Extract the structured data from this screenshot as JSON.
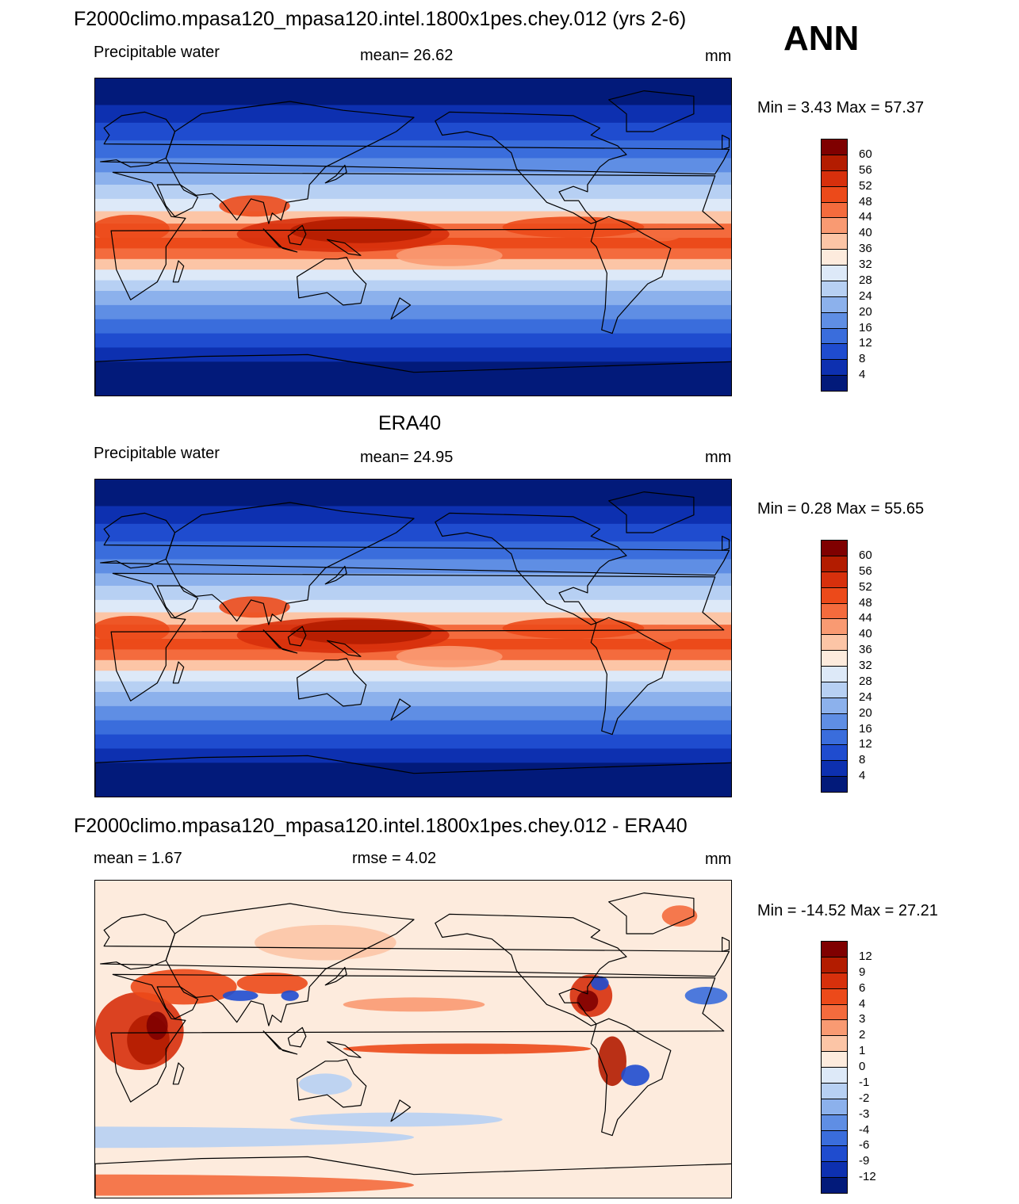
{
  "season": "ANN",
  "panels": [
    {
      "title": "F2000climo.mpasa120_mpasa120.intel.1800x1pes.chey.012 (yrs 2-6)",
      "left_label": "Precipitable water",
      "center_label": "mean=  26.62",
      "units": "mm",
      "minmax": "Min =    3.43 Max =  57.37",
      "kind": "field"
    },
    {
      "title": "ERA40",
      "left_label": "Precipitable water",
      "center_label": "mean=  24.95",
      "units": "mm",
      "minmax": "Min =    0.28 Max =  55.65",
      "kind": "field"
    },
    {
      "title": "F2000climo.mpasa120_mpasa120.intel.1800x1pes.chey.012 - ERA40",
      "left_label": "mean =    1.67",
      "center_label": "rmse =    4.02",
      "units": "mm",
      "minmax": "Min = -14.52 Max =  27.21",
      "kind": "diff"
    }
  ],
  "colorbars": {
    "field": {
      "labels": [
        "60",
        "56",
        "52",
        "48",
        "44",
        "40",
        "36",
        "32",
        "28",
        "24",
        "20",
        "16",
        "12",
        "8",
        "4"
      ],
      "colors": [
        "#7f0000",
        "#b31c00",
        "#d7300c",
        "#ec4a1a",
        "#f46b3d",
        "#f99a72",
        "#fcc5a6",
        "#fdebdd",
        "#dde9f8",
        "#b7d0f3",
        "#8cb1ec",
        "#5f8ee4",
        "#3a6ddc",
        "#1f4ccf",
        "#0d30b0",
        "#021a7a"
      ]
    },
    "diff": {
      "labels": [
        "12",
        "9",
        "6",
        "4",
        "3",
        "2",
        "1",
        "0",
        "-1",
        "-2",
        "-3",
        "-4",
        "-6",
        "-9",
        "-12"
      ],
      "colors": [
        "#7f0000",
        "#b31c00",
        "#d7300c",
        "#ec4a1a",
        "#f46b3d",
        "#f99a72",
        "#fcc5a6",
        "#fdebdd",
        "#dde9f8",
        "#b7d0f3",
        "#8cb1ec",
        "#5f8ee4",
        "#3a6ddc",
        "#1f4ccf",
        "#0d30b0",
        "#021a7a"
      ]
    }
  }
}
